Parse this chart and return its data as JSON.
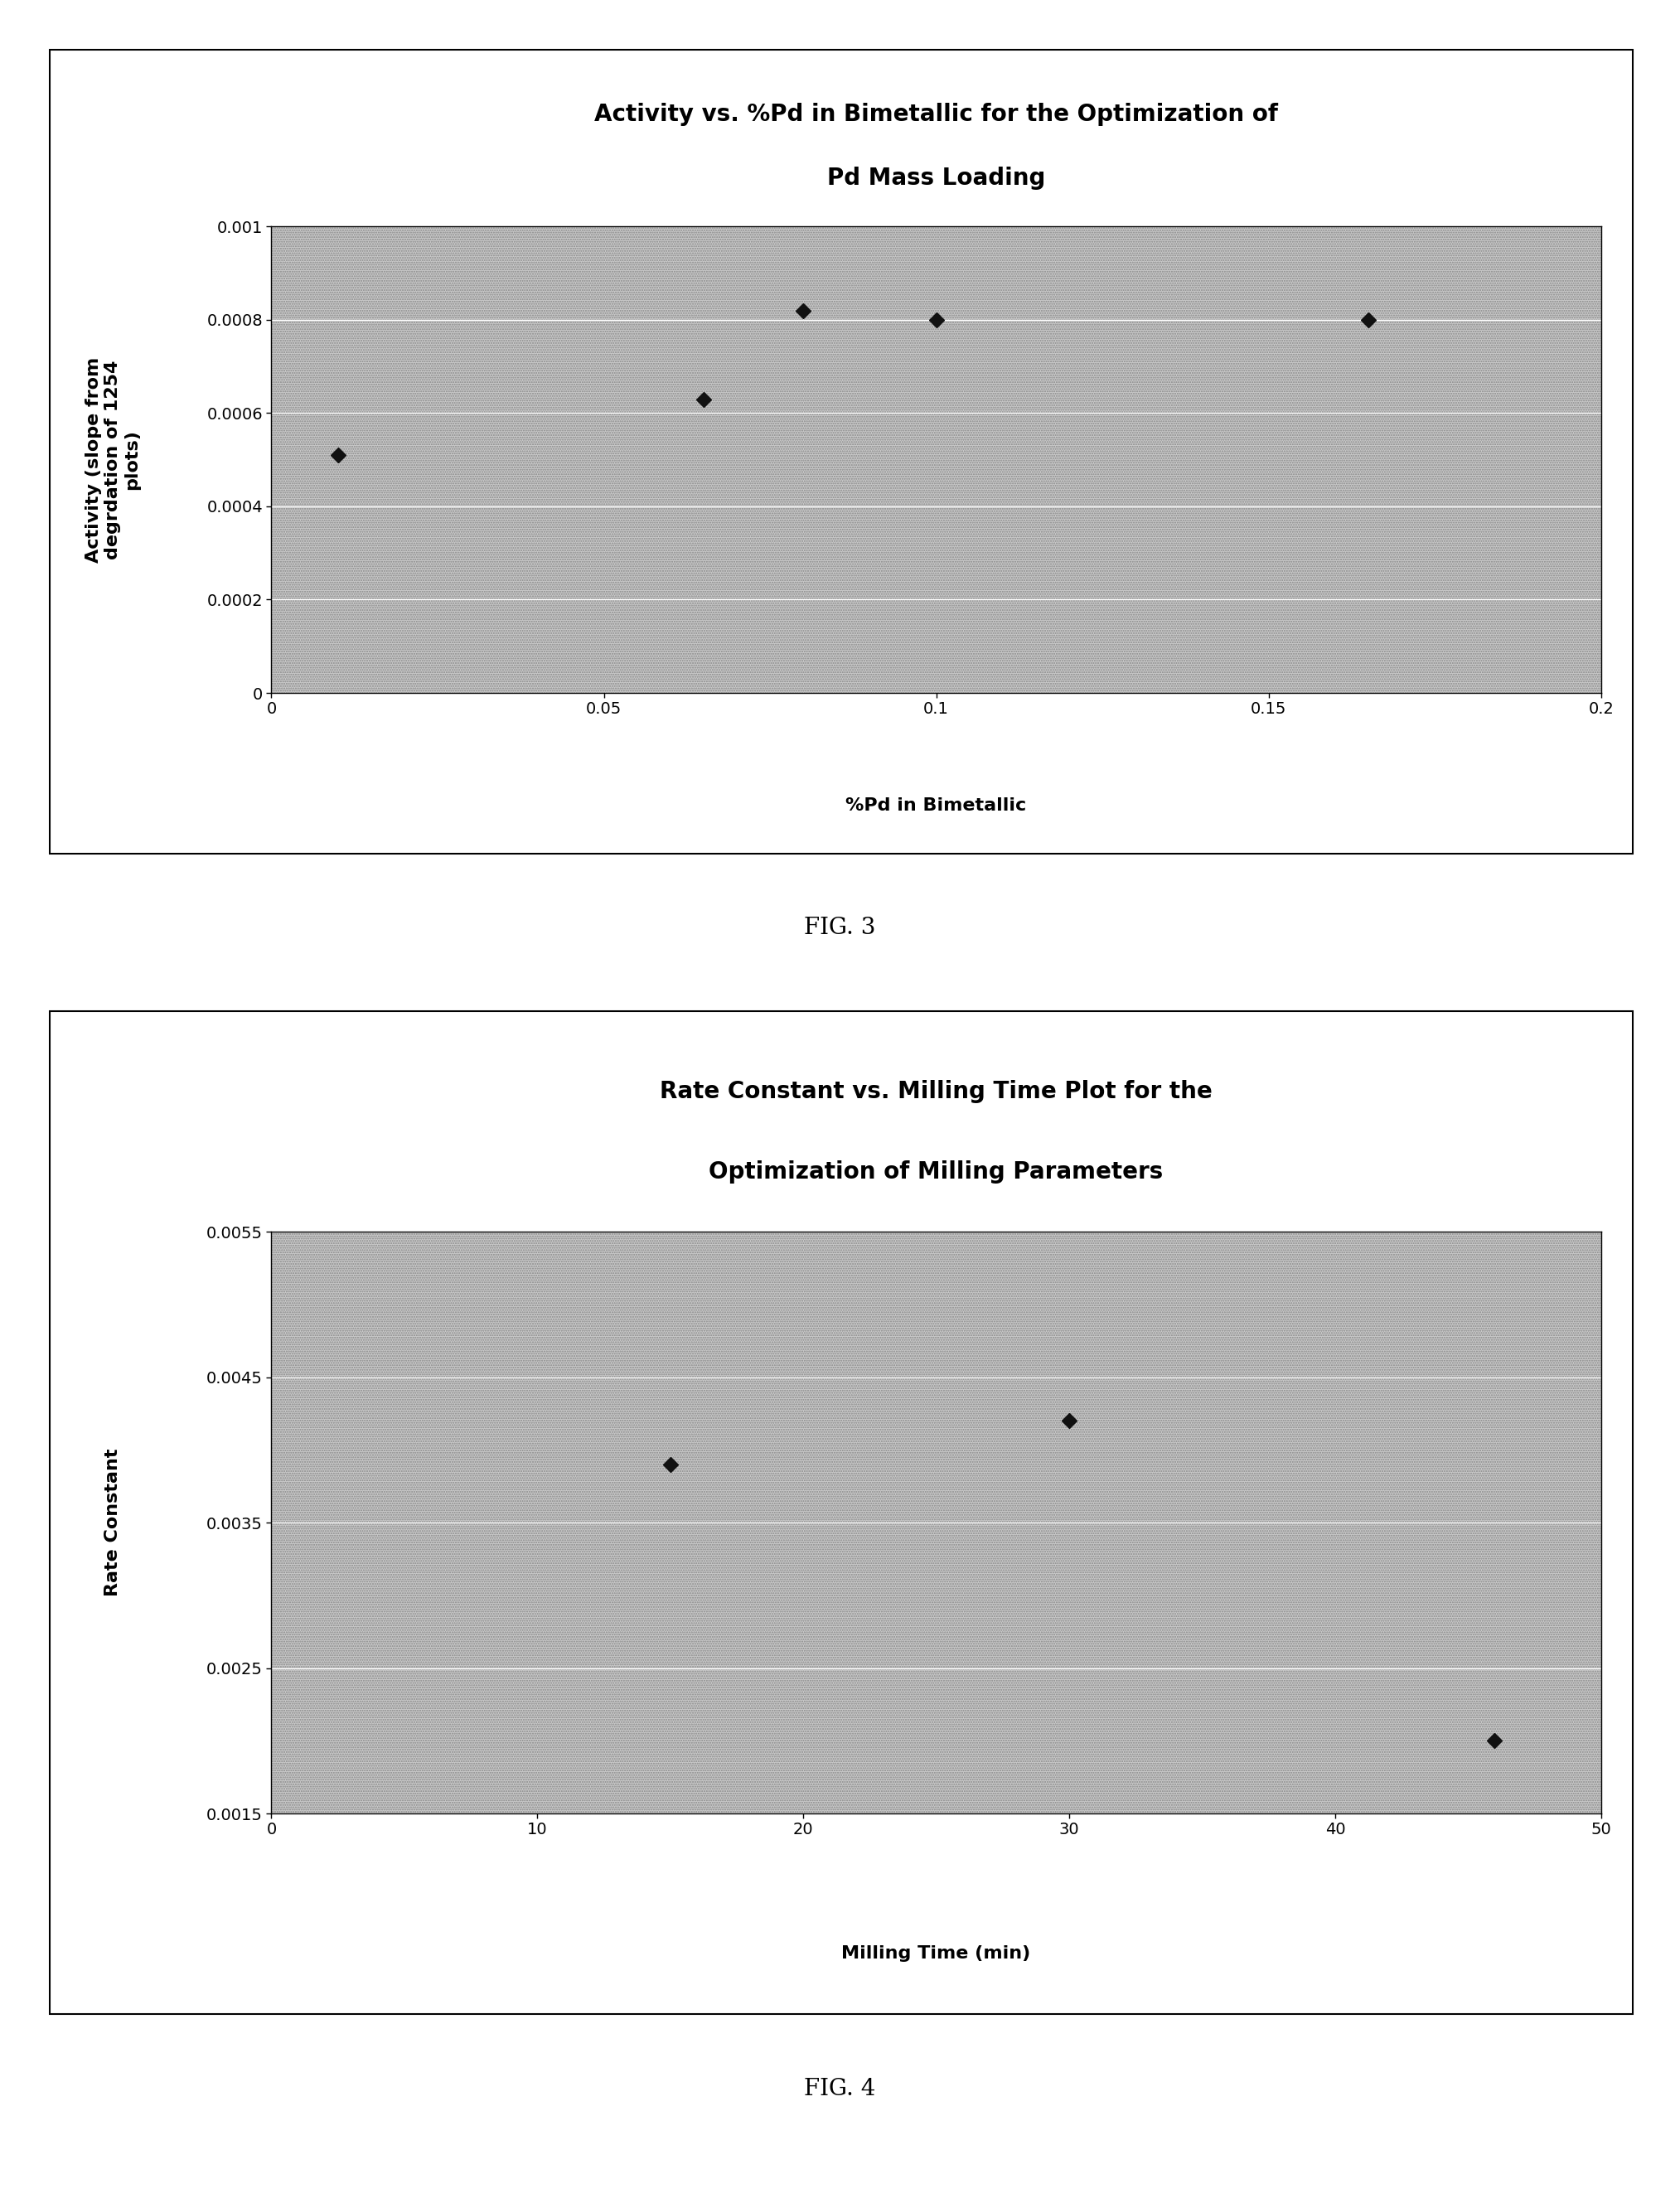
{
  "fig3": {
    "title1": "Activity vs. %Pd in Bimetallic for the Optimization of",
    "title2": "Pd Mass Loading",
    "xlabel": "%Pd in Bimetallic",
    "ylabel_lines": [
      "Activity (slope from",
      "degrdation of 1254",
      "plots)"
    ],
    "xlim": [
      0,
      0.2
    ],
    "ylim": [
      0,
      0.001
    ],
    "xticks": [
      0,
      0.05,
      0.1,
      0.15,
      0.2
    ],
    "yticks": [
      0,
      0.0002,
      0.0004,
      0.0006,
      0.0008,
      0.001
    ],
    "x_data": [
      0.01,
      0.065,
      0.08,
      0.1,
      0.165
    ],
    "y_data": [
      0.00051,
      0.00063,
      0.00082,
      0.0008,
      0.0008
    ],
    "bg_color": "#c8c8c8",
    "marker_color": "#111111",
    "caption": "FIG. 3"
  },
  "fig4": {
    "title1": "Rate Constant vs. Milling Time Plot for the",
    "title2": "Optimization of Milling Parameters",
    "xlabel": "Milling Time (min)",
    "ylabel_lines": [
      "Rate Constant"
    ],
    "xlim": [
      0,
      50
    ],
    "ylim": [
      0.0015,
      0.0055
    ],
    "xticks": [
      0,
      10,
      20,
      30,
      40,
      50
    ],
    "yticks": [
      0.0015,
      0.0025,
      0.0035,
      0.0045,
      0.0055
    ],
    "x_data": [
      15,
      30,
      46
    ],
    "y_data": [
      0.0039,
      0.0042,
      0.002
    ],
    "bg_color": "#c8c8c8",
    "marker_color": "#111111",
    "caption": "FIG. 4"
  },
  "page_bg": "#ffffff",
  "title_fontsize": 20,
  "axis_label_fontsize": 16,
  "tick_fontsize": 14,
  "caption_fontsize": 20
}
